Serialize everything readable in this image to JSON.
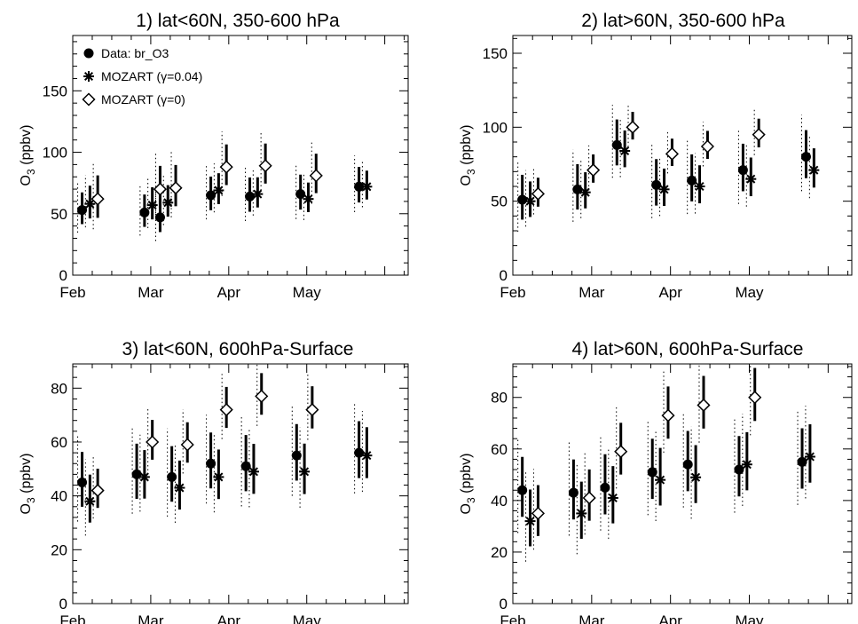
{
  "figure": {
    "month_labels": [
      "Feb",
      "Mar",
      "Apr",
      "May"
    ],
    "legend": [
      {
        "marker": "filled-circle",
        "label": "Data: br_O3"
      },
      {
        "marker": "asterisk",
        "label": "MOZART (γ=0.04)"
      },
      {
        "marker": "open-diamond",
        "label": "MOZART (γ=0)"
      }
    ]
  },
  "chart_data": [
    {
      "type": "scatter",
      "title": "1) lat<60N, 350-600 hPa",
      "ylabel": "O3 (ppbv)",
      "ylim": [
        0,
        195
      ],
      "yticks": [
        0,
        50,
        100,
        150
      ],
      "xlim": [
        0,
        4.3
      ],
      "xticks": [
        0,
        1,
        2,
        3
      ],
      "xticklabels": [
        "Feb",
        "Mar",
        "Apr",
        "May"
      ],
      "legend_position": "top-left",
      "series": [
        {
          "name": "Data: br_O3",
          "marker": "filled-circle",
          "x": [
            0.12,
            0.92,
            1.12,
            1.77,
            2.27,
            2.92,
            3.67
          ],
          "y": [
            53,
            51,
            47,
            65,
            64,
            66,
            72
          ]
        },
        {
          "name": "MOZART (γ=0.04)",
          "marker": "asterisk",
          "x": [
            0.22,
            1.02,
            1.22,
            1.87,
            2.37,
            3.02,
            3.77
          ],
          "y": [
            58,
            57,
            59,
            69,
            66,
            62,
            72
          ]
        },
        {
          "name": "MOZART (γ=0)",
          "marker": "open-diamond",
          "x": [
            0.32,
            1.12,
            1.32,
            1.97,
            2.47,
            3.12
          ],
          "y": [
            62,
            70,
            71,
            88,
            89,
            81
          ]
        }
      ]
    },
    {
      "type": "scatter",
      "title": "2) lat>60N, 350-600 hPa",
      "ylabel": "O3 (ppbv)",
      "ylim": [
        0,
        162
      ],
      "yticks": [
        0,
        50,
        100,
        150
      ],
      "xlim": [
        0,
        4.3
      ],
      "xticks": [
        0,
        1,
        2,
        3
      ],
      "xticklabels": [
        "Feb",
        "Mar",
        "Apr",
        "May"
      ],
      "series": [
        {
          "name": "Data: br_O3",
          "marker": "filled-circle",
          "x": [
            0.12,
            0.82,
            1.32,
            1.82,
            2.27,
            2.92,
            3.72
          ],
          "y": [
            51,
            58,
            88,
            61,
            64,
            71,
            80
          ]
        },
        {
          "name": "MOZART (γ=0.04)",
          "marker": "asterisk",
          "x": [
            0.22,
            0.92,
            1.42,
            1.92,
            2.37,
            3.02,
            3.82
          ],
          "y": [
            50,
            56,
            84,
            58,
            60,
            65,
            71
          ]
        },
        {
          "name": "MOZART (γ=0)",
          "marker": "open-diamond",
          "x": [
            0.32,
            1.02,
            1.52,
            2.02,
            2.47,
            3.12
          ],
          "y": [
            55,
            71,
            100,
            82,
            87,
            95
          ]
        }
      ]
    },
    {
      "type": "scatter",
      "title": "3) lat<60N, 600hPa-Surface",
      "ylabel": "O3 (ppbv)",
      "ylim": [
        0,
        89
      ],
      "yticks": [
        0,
        20,
        40,
        60,
        80
      ],
      "xlim": [
        0,
        4.3
      ],
      "xticks": [
        0,
        1,
        2,
        3
      ],
      "xticklabels": [
        "Feb",
        "Mar",
        "Apr",
        "May"
      ],
      "series": [
        {
          "name": "Data: br_O3",
          "marker": "filled-circle",
          "x": [
            0.12,
            0.82,
            1.27,
            1.77,
            2.22,
            2.87,
            3.67
          ],
          "y": [
            45,
            48,
            47,
            52,
            51,
            55,
            56
          ]
        },
        {
          "name": "MOZART (γ=0.04)",
          "marker": "asterisk",
          "x": [
            0.22,
            0.92,
            1.37,
            1.87,
            2.32,
            2.97,
            3.77
          ],
          "y": [
            38,
            47,
            43,
            47,
            49,
            49,
            55
          ]
        },
        {
          "name": "MOZART (γ=0)",
          "marker": "open-diamond",
          "x": [
            0.32,
            1.02,
            1.47,
            1.97,
            2.42,
            3.07
          ],
          "y": [
            42,
            60,
            59,
            72,
            77,
            72
          ]
        }
      ]
    },
    {
      "type": "scatter",
      "title": "4) lat>60N, 600hPa-Surface",
      "ylabel": "O3 (ppbv)",
      "ylim": [
        0,
        93
      ],
      "yticks": [
        0,
        20,
        40,
        60,
        80
      ],
      "xlim": [
        0,
        4.3
      ],
      "xticks": [
        0,
        1,
        2,
        3
      ],
      "xticklabels": [
        "Feb",
        "Mar",
        "Apr",
        "May"
      ],
      "series": [
        {
          "name": "Data: br_O3",
          "marker": "filled-circle",
          "x": [
            0.12,
            0.77,
            1.17,
            1.77,
            2.22,
            2.87,
            3.67
          ],
          "y": [
            44,
            43,
            45,
            51,
            54,
            52,
            55
          ]
        },
        {
          "name": "MOZART (γ=0.04)",
          "marker": "asterisk",
          "x": [
            0.22,
            0.87,
            1.27,
            1.87,
            2.32,
            2.97,
            3.77
          ],
          "y": [
            32,
            35,
            41,
            48,
            49,
            54,
            57
          ]
        },
        {
          "name": "MOZART (γ=0)",
          "marker": "open-diamond",
          "x": [
            0.32,
            0.97,
            1.37,
            1.97,
            2.42,
            3.07
          ],
          "y": [
            35,
            41,
            59,
            73,
            77,
            80
          ]
        }
      ]
    }
  ]
}
